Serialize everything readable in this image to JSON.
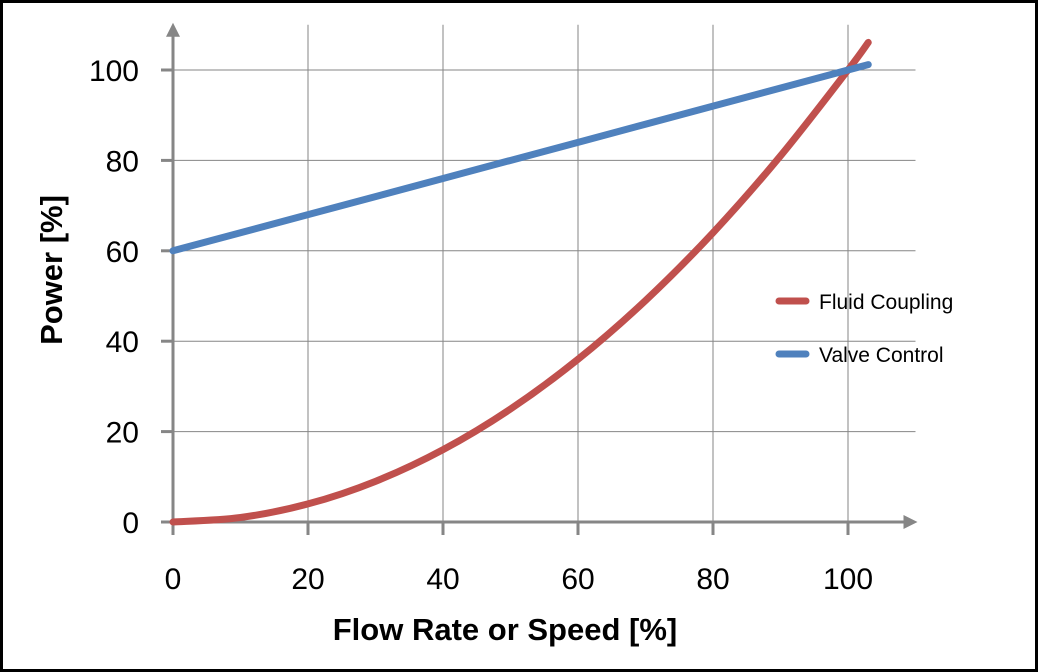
{
  "chart_data": {
    "type": "line",
    "title": "",
    "xlabel": "Flow Rate or Speed [%]",
    "ylabel": "Power [%]",
    "xlim": [
      0,
      110
    ],
    "ylim": [
      0,
      110
    ],
    "xticks": [
      0,
      20,
      40,
      60,
      80,
      100
    ],
    "yticks": [
      0,
      20,
      40,
      60,
      80,
      100
    ],
    "xtick_labels": [
      "0",
      "20",
      "40",
      "60",
      "80",
      "100"
    ],
    "ytick_labels": [
      "0",
      "20",
      "40",
      "60",
      "80",
      "100"
    ],
    "grid": true,
    "legend_position": "right",
    "series": [
      {
        "name": "Fluid Coupling",
        "color": "#C0504D",
        "x": [
          0,
          10,
          20,
          30,
          40,
          50,
          60,
          70,
          80,
          90,
          100,
          103
        ],
        "y": [
          0,
          1,
          4,
          9,
          16,
          25,
          36,
          49,
          64,
          81,
          100,
          106.1
        ]
      },
      {
        "name": "Valve Control",
        "color": "#4F81BD",
        "x": [
          0,
          20,
          40,
          60,
          80,
          100,
          103
        ],
        "y": [
          60,
          68,
          76,
          84,
          92,
          100,
          101.2
        ]
      }
    ]
  },
  "colors": {
    "axis": "#868686",
    "grid": "#868686"
  }
}
